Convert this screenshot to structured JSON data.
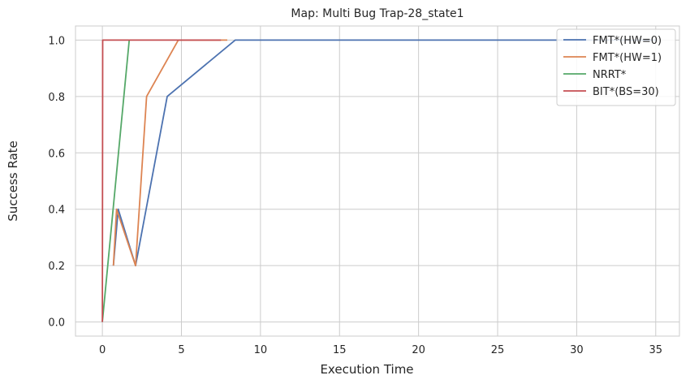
{
  "chart_data": {
    "type": "line",
    "title": "Map: Multi Bug Trap-28_state1",
    "xlabel": "Execution Time",
    "ylabel": "Success Rate",
    "xlim": [
      -1.7,
      36.5
    ],
    "ylim": [
      -0.05,
      1.05
    ],
    "xticks": [
      0,
      5,
      10,
      15,
      20,
      25,
      30,
      35
    ],
    "yticks": [
      0.0,
      0.2,
      0.4,
      0.6,
      0.8,
      1.0
    ],
    "xtick_labels": [
      "0",
      "5",
      "10",
      "15",
      "20",
      "25",
      "30",
      "35"
    ],
    "ytick_labels": [
      "0.0",
      "0.2",
      "0.4",
      "0.6",
      "0.8",
      "1.0"
    ],
    "grid": true,
    "legend_position": "top-right",
    "series": [
      {
        "name": "FMT*(HW=0)",
        "color": "#4c72b0",
        "x": [
          0.7,
          1.0,
          2.1,
          4.1,
          8.4,
          35.0
        ],
        "y": [
          0.2,
          0.4,
          0.2,
          0.8,
          1.0,
          1.0
        ]
      },
      {
        "name": "FMT*(HW=1)",
        "color": "#dd8452",
        "x": [
          0.7,
          0.9,
          2.1,
          2.8,
          4.8,
          7.9
        ],
        "y": [
          0.2,
          0.4,
          0.2,
          0.8,
          1.0,
          1.0
        ]
      },
      {
        "name": "NRRT*",
        "color": "#55a868",
        "x": [
          0.0,
          1.7
        ],
        "y": [
          0.0,
          1.0
        ]
      },
      {
        "name": "BIT*(BS=30)",
        "color": "#c44e52",
        "x": [
          0.0,
          0.02,
          0.05,
          3.5,
          7.5
        ],
        "y": [
          0.0,
          1.0,
          1.0,
          1.0,
          1.0
        ]
      }
    ]
  }
}
